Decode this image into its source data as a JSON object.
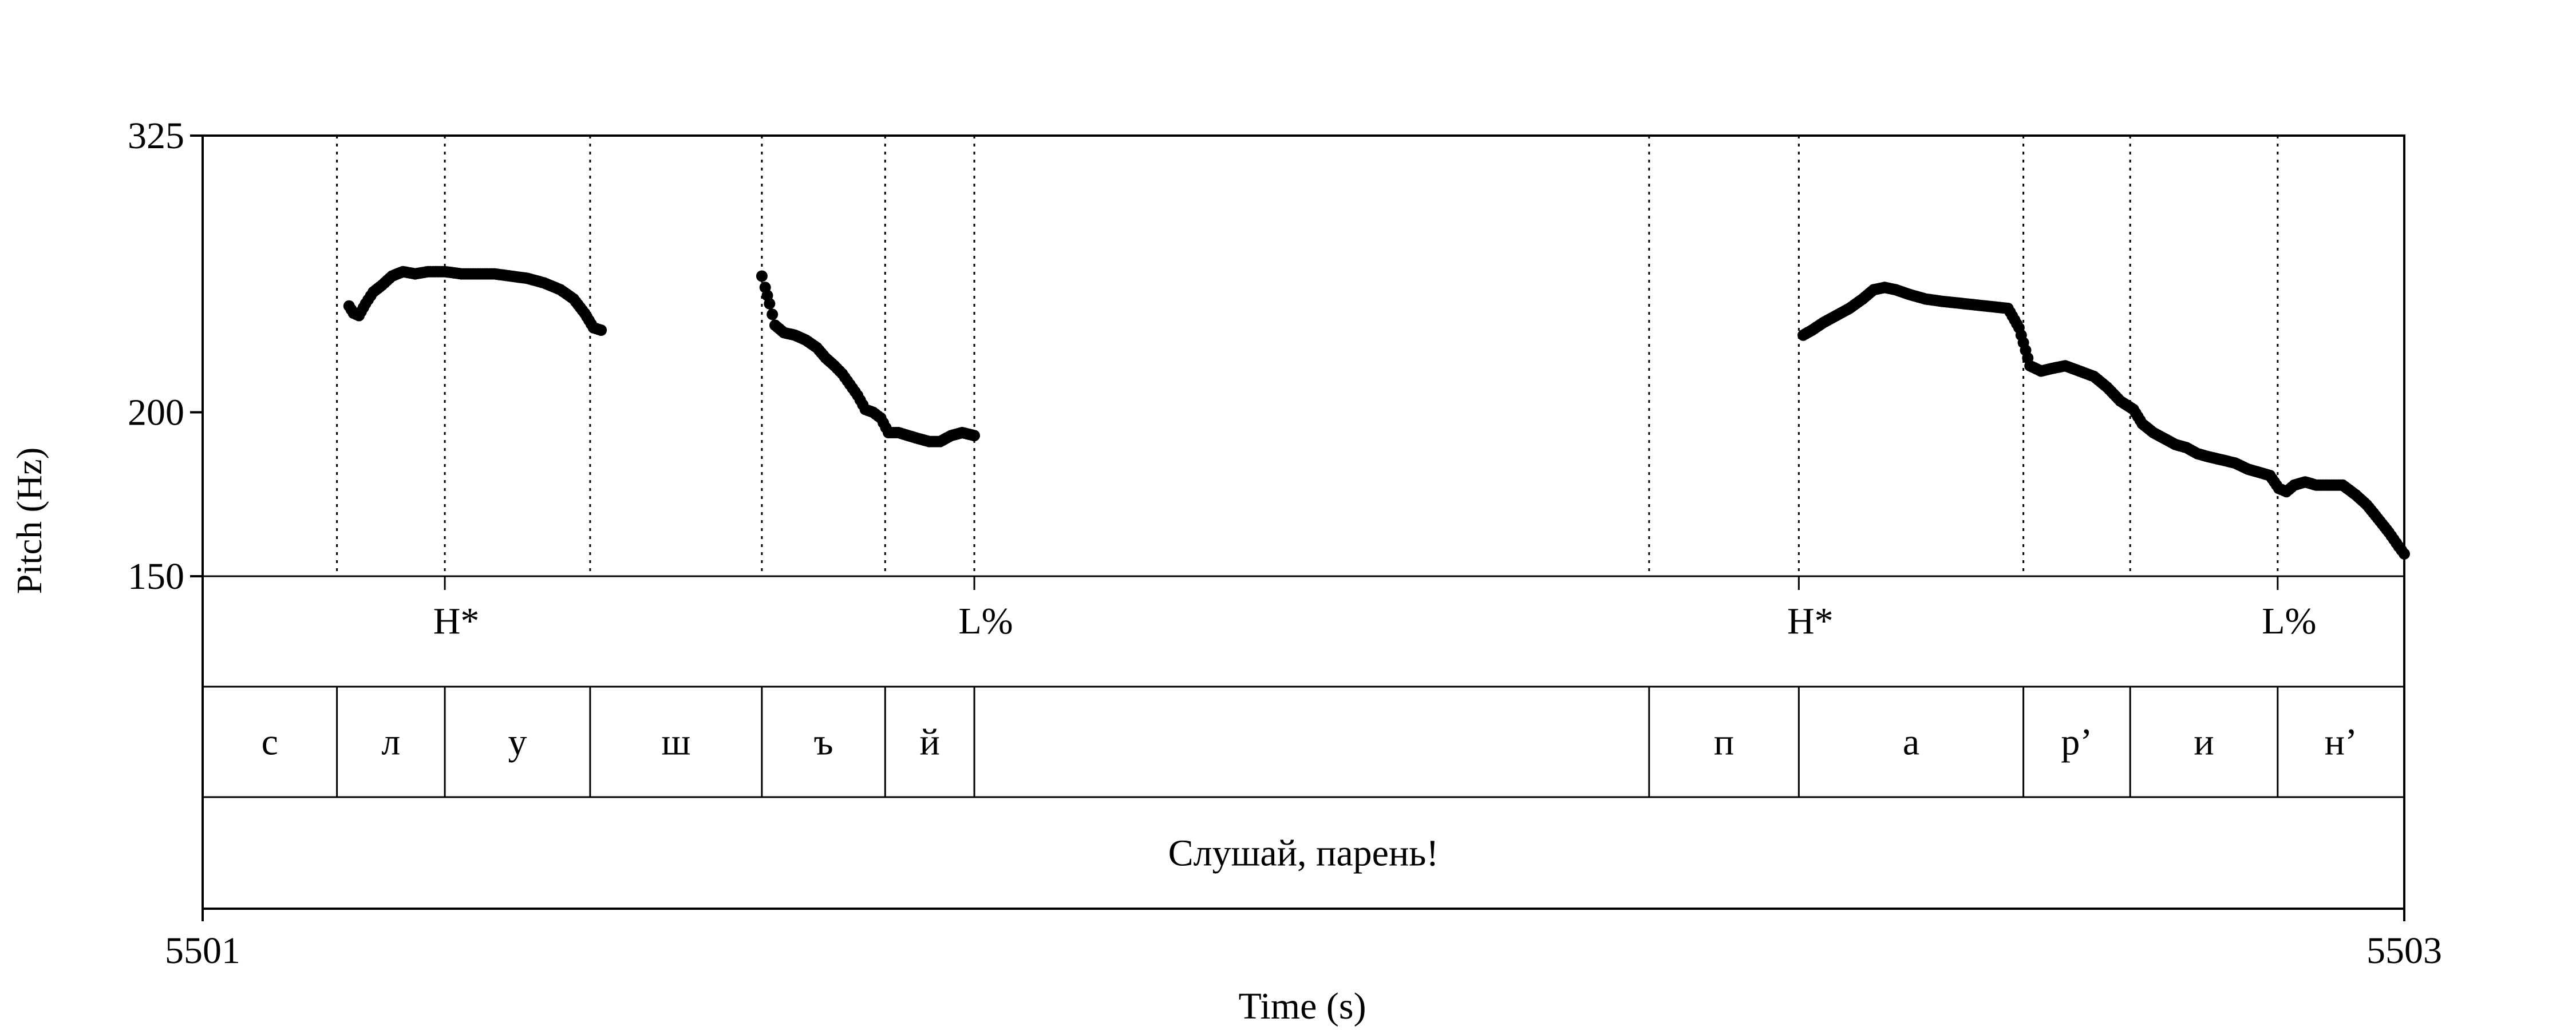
{
  "chart_data": {
    "type": "scatter",
    "xlabel": "Time (s)",
    "ylabel": "Pitch (Hz)",
    "xlim": [
      5501,
      5503
    ],
    "ylim": [
      150,
      325
    ],
    "x_ticks": [
      "5501",
      "5503"
    ],
    "y_ticks": [
      "325",
      "200",
      "150"
    ],
    "y_tick_values": [
      325,
      200,
      150
    ],
    "scale": "log",
    "series_color": "#000000",
    "segment_boundaries": [
      5501.122,
      5501.22,
      5501.352,
      5501.508,
      5501.62,
      5501.701,
      5502.314,
      5502.45,
      5502.654,
      5502.751,
      5502.885
    ],
    "tones": [
      {
        "label": "H*",
        "time": 5501.22
      },
      {
        "label": "L%",
        "time": 5501.701
      },
      {
        "label": "H*",
        "time": 5502.45
      },
      {
        "label": "L%",
        "time": 5502.885
      }
    ],
    "segments": [
      {
        "label": "с",
        "start": 5501.0,
        "end": 5501.122
      },
      {
        "label": "л",
        "start": 5501.122,
        "end": 5501.22
      },
      {
        "label": "у",
        "start": 5501.22,
        "end": 5501.352
      },
      {
        "label": "ш",
        "start": 5501.352,
        "end": 5501.508
      },
      {
        "label": "ъ",
        "start": 5501.508,
        "end": 5501.62
      },
      {
        "label": "й",
        "start": 5501.62,
        "end": 5501.701
      },
      {
        "label": "п",
        "start": 5502.314,
        "end": 5502.45
      },
      {
        "label": "а",
        "start": 5502.45,
        "end": 5502.654
      },
      {
        "label": "р’",
        "start": 5502.654,
        "end": 5502.751
      },
      {
        "label": "и",
        "start": 5502.751,
        "end": 5502.885
      },
      {
        "label": "н’",
        "start": 5502.885,
        "end": 5503.0
      }
    ],
    "utterance": {
      "label": "Слушай, парень!",
      "start": 5501.0,
      "end": 5503.0
    },
    "pitch_contours": [
      {
        "x": [
          5501.133,
          5501.137,
          5501.142,
          5501.148,
          5501.155,
          5501.163,
          5501.172,
          5501.182,
          5501.193,
          5501.205,
          5501.22,
          5501.235,
          5501.25,
          5501.265,
          5501.28,
          5501.295,
          5501.31,
          5501.325,
          5501.337,
          5501.347,
          5501.355,
          5501.362
        ],
        "y": [
          241,
          238,
          237,
          242,
          247,
          250,
          254,
          256,
          255,
          256,
          256,
          255,
          255,
          255,
          254,
          253,
          251,
          248,
          244,
          238,
          232,
          231
        ]
      },
      {
        "x": [
          5501.508,
          5501.511,
          5501.515,
          5501.52,
          5501.528,
          5501.538,
          5501.548,
          5501.558,
          5501.566,
          5501.574,
          5501.581,
          5501.588,
          5501.595,
          5501.602,
          5501.609,
          5501.616,
          5501.623,
          5501.632,
          5501.641,
          5501.65,
          5501.66,
          5501.67,
          5501.68,
          5501.69,
          5501.701
        ],
        "y": [
          254,
          249,
          242,
          233,
          230,
          229,
          227,
          224,
          220,
          217,
          214,
          210,
          206,
          201,
          200,
          198,
          193,
          193,
          192,
          191,
          190,
          190,
          192,
          193,
          192
        ]
      },
      {
        "x": [
          5502.454,
          5502.462,
          5502.472,
          5502.484,
          5502.496,
          5502.508,
          5502.518,
          5502.528,
          5502.538,
          5502.55,
          5502.565,
          5502.58,
          5502.6,
          5502.62,
          5502.64,
          5502.65,
          5502.66,
          5502.67,
          5502.68,
          5502.692,
          5502.705,
          5502.718,
          5502.73,
          5502.742,
          5502.754,
          5502.762,
          5502.772,
          5502.782,
          5502.792,
          5502.802,
          5502.812,
          5502.822,
          5502.834,
          5502.846,
          5502.858,
          5502.868,
          5502.878,
          5502.886,
          5502.893,
          5502.9,
          5502.91,
          5502.92,
          5502.932,
          5502.944,
          5502.956,
          5502.966,
          5502.976,
          5502.986,
          5502.995,
          5503.0
        ],
        "y": [
          229,
          231,
          234,
          237,
          240,
          244,
          248,
          249,
          248,
          246,
          244,
          243,
          242,
          241,
          240,
          232,
          217,
          215,
          216,
          217,
          215,
          213,
          209,
          204,
          201,
          196,
          193,
          191,
          189,
          188,
          186,
          185,
          184,
          183,
          181,
          180,
          179,
          175,
          174,
          176,
          177,
          176,
          176,
          176,
          173,
          170,
          166,
          162,
          158,
          156
        ]
      }
    ]
  }
}
